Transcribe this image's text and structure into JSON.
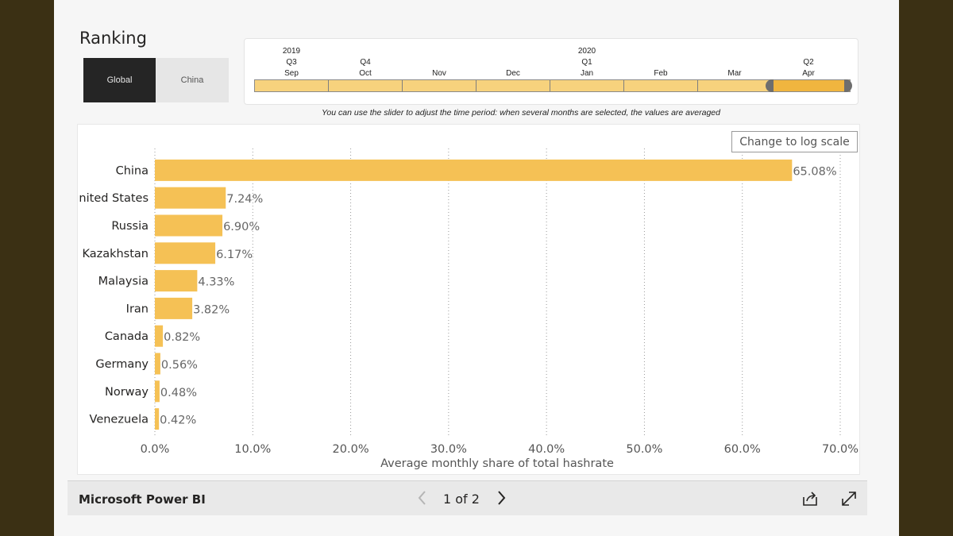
{
  "ranking": {
    "title": "Ranking",
    "buttons": [
      {
        "label": "Global",
        "selected": true
      },
      {
        "label": "China",
        "selected": false
      }
    ]
  },
  "timeline": {
    "years": [
      "2019",
      "2020"
    ],
    "quarters": [
      "Q3",
      "Q4",
      "Q1",
      "Q2"
    ],
    "months": [
      "Sep",
      "Oct",
      "Nov",
      "Dec",
      "Jan",
      "Feb",
      "Mar",
      "Apr"
    ],
    "selected_months": [
      "Apr"
    ],
    "note": "You can use the slider to adjust the time period: when several months are selected, the values are averaged"
  },
  "log_button": "Change to log scale",
  "chart_data": {
    "type": "bar",
    "orientation": "horizontal",
    "categories": [
      "China",
      "United States",
      "Russia",
      "Kazakhstan",
      "Malaysia",
      "Iran",
      "Canada",
      "Germany",
      "Norway",
      "Venezuela"
    ],
    "category_display": [
      "China",
      "nited States",
      "Russia",
      "Kazakhstan",
      "Malaysia",
      "Iran",
      "Canada",
      "Germany",
      "Norway",
      "Venezuela"
    ],
    "values": [
      65.08,
      7.24,
      6.9,
      6.17,
      4.33,
      3.82,
      0.82,
      0.56,
      0.48,
      0.42
    ],
    "data_labels": [
      "65.08%",
      "7.24%",
      "6.90%",
      "6.17%",
      "4.33%",
      "3.82%",
      "0.82%",
      "0.56%",
      "0.48%",
      "0.42%"
    ],
    "xlabel": "Average monthly share of total hashrate",
    "xlim": [
      0,
      70
    ],
    "xticks": [
      0,
      10,
      20,
      30,
      40,
      50,
      60,
      70
    ],
    "xtick_labels": [
      "0.0%",
      "10.0%",
      "20.0%",
      "30.0%",
      "40.0%",
      "50.0%",
      "60.0%",
      "70.0%"
    ],
    "grid": "vertical dotted",
    "bar_color": "#f5c155"
  },
  "footer": {
    "brand": "Microsoft Power BI",
    "page_indicator": "1 of 2"
  },
  "colors": {
    "background": "#3b3014",
    "bar": "#f5c155",
    "slider_fill": "#f7d27d",
    "slider_selected": "#f0b53f"
  }
}
